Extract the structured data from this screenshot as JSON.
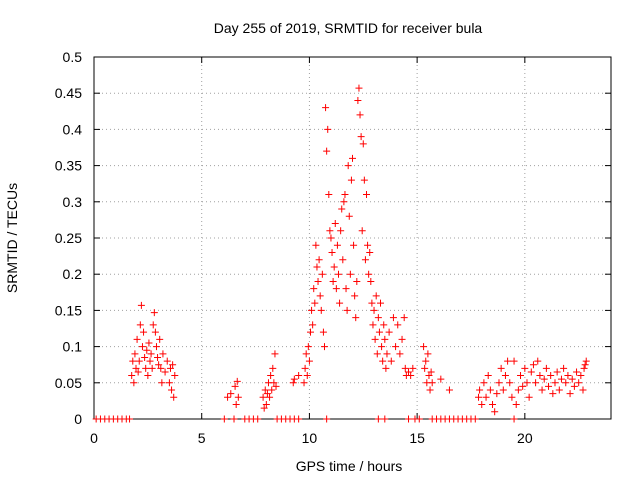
{
  "chart_data": {
    "type": "scatter",
    "title": "Day 255 of 2019, SRMTID for receiver bula",
    "xlabel": "GPS time / hours",
    "ylabel": "SRMTID / TECUs",
    "xlim": [
      0,
      24
    ],
    "ylim": [
      0,
      0.5
    ],
    "xticks": [
      "0",
      "5",
      "10",
      "15",
      "20"
    ],
    "yticks": [
      "0",
      "0.05",
      "0.1",
      "0.15",
      "0.2",
      "0.25",
      "0.3",
      "0.35",
      "0.4",
      "0.45",
      "0.5"
    ],
    "grid": true,
    "marker": "+",
    "color": "#ff0000",
    "series": [
      {
        "name": "SRMTID",
        "points": [
          [
            0.1,
            0
          ],
          [
            0.3,
            0
          ],
          [
            0.5,
            0
          ],
          [
            0.7,
            0
          ],
          [
            0.9,
            0
          ],
          [
            1.1,
            0
          ],
          [
            1.3,
            0
          ],
          [
            1.5,
            0
          ],
          [
            1.65,
            0
          ],
          [
            1.75,
            0.06
          ],
          [
            1.8,
            0.08
          ],
          [
            1.85,
            0.05
          ],
          [
            1.9,
            0.09
          ],
          [
            1.95,
            0.07
          ],
          [
            2.0,
            0.11
          ],
          [
            2.05,
            0.065
          ],
          [
            2.1,
            0.08
          ],
          [
            2.15,
            0.13
          ],
          [
            2.2,
            0.157
          ],
          [
            2.25,
            0.1
          ],
          [
            2.3,
            0.12
          ],
          [
            2.35,
            0.085
          ],
          [
            2.4,
            0.07
          ],
          [
            2.45,
            0.095
          ],
          [
            2.5,
            0.06
          ],
          [
            2.55,
            0.105
          ],
          [
            2.6,
            0.08
          ],
          [
            2.65,
            0.09
          ],
          [
            2.7,
            0.07
          ],
          [
            2.75,
            0.13
          ],
          [
            2.8,
            0.147
          ],
          [
            2.85,
            0.12
          ],
          [
            2.9,
            0.1
          ],
          [
            2.95,
            0.085
          ],
          [
            3.0,
            0.075
          ],
          [
            3.05,
            0.11
          ],
          [
            3.1,
            0.07
          ],
          [
            3.15,
            0.05
          ],
          [
            3.2,
            0.09
          ],
          [
            3.3,
            0.065
          ],
          [
            3.4,
            0.08
          ],
          [
            3.5,
            0.05
          ],
          [
            3.55,
            0.07
          ],
          [
            3.6,
            0.04
          ],
          [
            3.65,
            0.075
          ],
          [
            3.7,
            0.03
          ],
          [
            3.75,
            0.06
          ],
          [
            6.05,
            0
          ],
          [
            6.2,
            0.03
          ],
          [
            6.35,
            0.035
          ],
          [
            6.5,
            0
          ],
          [
            6.55,
            0.045
          ],
          [
            6.6,
            0.02
          ],
          [
            6.65,
            0.052
          ],
          [
            6.7,
            0.03
          ],
          [
            7.0,
            0
          ],
          [
            7.2,
            0
          ],
          [
            7.4,
            0
          ],
          [
            7.6,
            0
          ],
          [
            7.85,
            0.03
          ],
          [
            7.9,
            0.015
          ],
          [
            7.95,
            0.04
          ],
          [
            8.0,
            0.02
          ],
          [
            8.05,
            0.035
          ],
          [
            8.1,
            0.05
          ],
          [
            8.15,
            0.03
          ],
          [
            8.2,
            0.06
          ],
          [
            8.25,
            0.04
          ],
          [
            8.3,
            0.07
          ],
          [
            8.35,
            0.05
          ],
          [
            8.4,
            0.09
          ],
          [
            8.45,
            0.045
          ],
          [
            8.5,
            0.0
          ],
          [
            8.7,
            0
          ],
          [
            8.9,
            0
          ],
          [
            9.1,
            0
          ],
          [
            9.3,
            0
          ],
          [
            9.5,
            0
          ],
          [
            9.25,
            0.05
          ],
          [
            9.3,
            0.055
          ],
          [
            9.5,
            0.06
          ],
          [
            9.75,
            0.05
          ],
          [
            9.8,
            0.07
          ],
          [
            9.85,
            0.09
          ],
          [
            9.9,
            0.06
          ],
          [
            9.95,
            0.1
          ],
          [
            10.0,
            0.08
          ],
          [
            10.05,
            0.12
          ],
          [
            10.1,
            0.15
          ],
          [
            10.15,
            0.13
          ],
          [
            10.2,
            0.18
          ],
          [
            10.25,
            0.16
          ],
          [
            10.3,
            0.24
          ],
          [
            10.35,
            0.21
          ],
          [
            10.4,
            0.19
          ],
          [
            10.45,
            0.22
          ],
          [
            10.5,
            0.17
          ],
          [
            10.55,
            0.15
          ],
          [
            10.6,
            0.2
          ],
          [
            10.65,
            0.12
          ],
          [
            10.7,
            0.1
          ],
          [
            10.75,
            0.43
          ],
          [
            10.8,
            0.37
          ],
          [
            10.85,
            0.4
          ],
          [
            10.9,
            0.31
          ],
          [
            10.95,
            0.26
          ],
          [
            11.0,
            0.25
          ],
          [
            11.05,
            0.23
          ],
          [
            11.1,
            0.19
          ],
          [
            11.15,
            0.21
          ],
          [
            11.2,
            0.27
          ],
          [
            11.25,
            0.18
          ],
          [
            11.3,
            0.24
          ],
          [
            11.35,
            0.2
          ],
          [
            11.4,
            0.16
          ],
          [
            11.45,
            0.26
          ],
          [
            11.5,
            0.29
          ],
          [
            11.55,
            0.22
          ],
          [
            11.6,
            0.3
          ],
          [
            11.65,
            0.31
          ],
          [
            11.7,
            0.18
          ],
          [
            11.75,
            0.15
          ],
          [
            11.8,
            0.35
          ],
          [
            11.85,
            0.28
          ],
          [
            11.9,
            0.2
          ],
          [
            11.95,
            0.33
          ],
          [
            12.0,
            0.36
          ],
          [
            12.05,
            0.24
          ],
          [
            12.1,
            0.17
          ],
          [
            12.15,
            0.14
          ],
          [
            12.2,
            0.19
          ],
          [
            12.25,
            0.44
          ],
          [
            12.3,
            0.457
          ],
          [
            12.35,
            0.42
          ],
          [
            12.4,
            0.39
          ],
          [
            12.45,
            0.26
          ],
          [
            12.5,
            0.38
          ],
          [
            12.55,
            0.33
          ],
          [
            12.6,
            0.22
          ],
          [
            12.65,
            0.31
          ],
          [
            12.7,
            0.24
          ],
          [
            12.75,
            0.2
          ],
          [
            12.8,
            0.23
          ],
          [
            12.85,
            0.19
          ],
          [
            12.9,
            0.16
          ],
          [
            12.95,
            0.13
          ],
          [
            13.0,
            0.15
          ],
          [
            13.05,
            0.11
          ],
          [
            13.1,
            0.17
          ],
          [
            13.15,
            0.09
          ],
          [
            13.2,
            0.14
          ],
          [
            13.25,
            0.12
          ],
          [
            13.3,
            0.16
          ],
          [
            13.35,
            0.1
          ],
          [
            13.4,
            0.08
          ],
          [
            13.45,
            0.13
          ],
          [
            13.5,
            0.11
          ],
          [
            13.55,
            0.07
          ],
          [
            13.6,
            0.09
          ],
          [
            13.7,
            0.12
          ],
          [
            13.8,
            0.08
          ],
          [
            13.9,
            0.14
          ],
          [
            14.0,
            0.1
          ],
          [
            14.1,
            0.13
          ],
          [
            14.2,
            0.09
          ],
          [
            14.3,
            0.11
          ],
          [
            14.4,
            0.14
          ],
          [
            14.45,
            0.07
          ],
          [
            14.5,
            0.06
          ],
          [
            14.6,
            0.065
          ],
          [
            14.7,
            0.06
          ],
          [
            14.8,
            0.07
          ],
          [
            10.8,
            0
          ],
          [
            13.2,
            0
          ],
          [
            13.5,
            0
          ],
          [
            14.6,
            0
          ],
          [
            14.9,
            0
          ],
          [
            15.1,
            0
          ],
          [
            15.3,
            0.1
          ],
          [
            15.35,
            0.07
          ],
          [
            15.4,
            0.08
          ],
          [
            15.45,
            0.05
          ],
          [
            15.5,
            0.09
          ],
          [
            15.55,
            0.06
          ],
          [
            15.6,
            0.04
          ],
          [
            15.65,
            0.065
          ],
          [
            15.7,
            0.05
          ],
          [
            16.1,
            0.055
          ],
          [
            16.5,
            0.04
          ],
          [
            15.7,
            0
          ],
          [
            15.9,
            0
          ],
          [
            16.1,
            0
          ],
          [
            16.3,
            0
          ],
          [
            16.5,
            0
          ],
          [
            16.7,
            0
          ],
          [
            16.9,
            0
          ],
          [
            17.1,
            0
          ],
          [
            17.3,
            0
          ],
          [
            17.5,
            0
          ],
          [
            17.7,
            0
          ],
          [
            19.5,
            0
          ],
          [
            17.85,
            0.03
          ],
          [
            17.9,
            0.04
          ],
          [
            18.0,
            0.02
          ],
          [
            18.1,
            0.05
          ],
          [
            18.2,
            0.03
          ],
          [
            18.3,
            0.06
          ],
          [
            18.4,
            0.04
          ],
          [
            18.5,
            0.02
          ],
          [
            18.6,
            0.01
          ],
          [
            18.7,
            0.035
          ],
          [
            18.8,
            0.05
          ],
          [
            18.9,
            0.07
          ],
          [
            19.0,
            0.04
          ],
          [
            19.1,
            0.06
          ],
          [
            19.2,
            0.08
          ],
          [
            19.3,
            0.05
          ],
          [
            19.4,
            0.03
          ],
          [
            19.5,
            0.08
          ],
          [
            19.6,
            0.02
          ],
          [
            19.7,
            0.04
          ],
          [
            19.8,
            0.06
          ],
          [
            19.9,
            0.045
          ],
          [
            20.0,
            0.07
          ],
          [
            20.1,
            0.05
          ],
          [
            20.2,
            0.03
          ],
          [
            20.3,
            0.065
          ],
          [
            20.4,
            0.075
          ],
          [
            20.5,
            0.05
          ],
          [
            20.6,
            0.08
          ],
          [
            20.7,
            0.06
          ],
          [
            20.8,
            0.04
          ],
          [
            20.9,
            0.055
          ],
          [
            21.0,
            0.07
          ],
          [
            21.1,
            0.045
          ],
          [
            21.2,
            0.06
          ],
          [
            21.3,
            0.035
          ],
          [
            21.4,
            0.05
          ],
          [
            21.5,
            0.065
          ],
          [
            21.6,
            0.04
          ],
          [
            21.7,
            0.055
          ],
          [
            21.8,
            0.07
          ],
          [
            21.9,
            0.05
          ],
          [
            22.0,
            0.06
          ],
          [
            22.1,
            0.035
          ],
          [
            22.2,
            0.055
          ],
          [
            22.3,
            0.045
          ],
          [
            22.4,
            0.065
          ],
          [
            22.5,
            0.05
          ],
          [
            22.6,
            0.06
          ],
          [
            22.7,
            0.04
          ],
          [
            22.75,
            0.07
          ],
          [
            22.8,
            0.075
          ],
          [
            22.85,
            0.08
          ]
        ]
      }
    ]
  }
}
